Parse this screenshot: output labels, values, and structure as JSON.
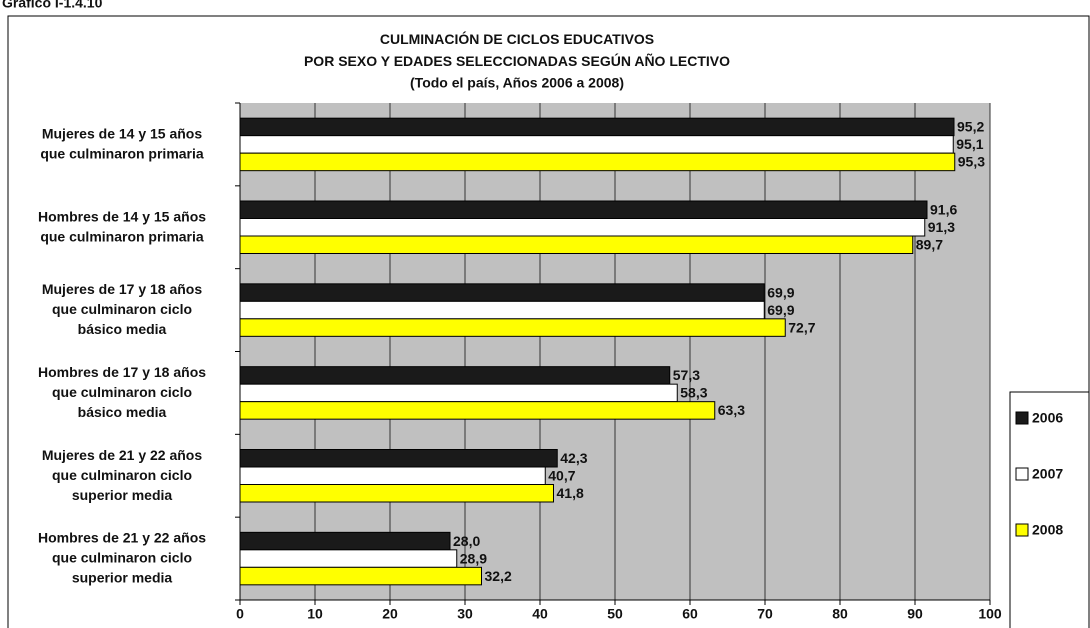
{
  "chart_data": {
    "type": "barh",
    "figure_label": "Gráfico I-1.4.10",
    "title": "CULMINACIÓN DE CICLOS EDUCATIVOS\nPOR SEXO Y EDADES SELECCIONADAS SEGÚN AÑO LECTIVO",
    "subtitle": "(Todo el país, Años 2006 a 2008)",
    "categories": [
      "Mujeres de 14 y 15 años\nque culminaron primaria",
      "Hombres de 14 y 15 años\nque culminaron primaria",
      "Mujeres de 17 y 18 años\nque culminaron ciclo\nbásico media",
      "Hombres de 17 y 18 años\nque culminaron ciclo\nbásico media",
      "Mujeres de 21 y 22 años\nque culminaron ciclo\nsuperior media",
      "Hombres de 21 y 22 años\nque culminaron ciclo\nsuperior media"
    ],
    "series": [
      {
        "name": "2006",
        "color": "#1a1a1a",
        "values": [
          95.2,
          91.6,
          69.9,
          57.3,
          42.3,
          28.0
        ],
        "value_labels": [
          "95,2",
          "91,6",
          "69,9",
          "57,3",
          "42,3",
          "28,0"
        ]
      },
      {
        "name": "2007",
        "color": "#ffffff",
        "values": [
          95.1,
          91.3,
          69.9,
          58.3,
          40.7,
          28.9
        ],
        "value_labels": [
          "95,1",
          "91,3",
          "69,9",
          "58,3",
          "40,7",
          "28,9"
        ]
      },
      {
        "name": "2008",
        "color": "#ffff00",
        "values": [
          95.3,
          89.7,
          72.7,
          63.3,
          41.8,
          32.2
        ],
        "value_labels": [
          "95,3",
          "89,7",
          "72,7",
          "63,3",
          "41,8",
          "32,2"
        ]
      }
    ],
    "xlim": [
      0,
      100
    ],
    "xticks": [
      0,
      10,
      20,
      30,
      40,
      50,
      60,
      70,
      80,
      90,
      100
    ],
    "grid": true,
    "legend": "right"
  }
}
